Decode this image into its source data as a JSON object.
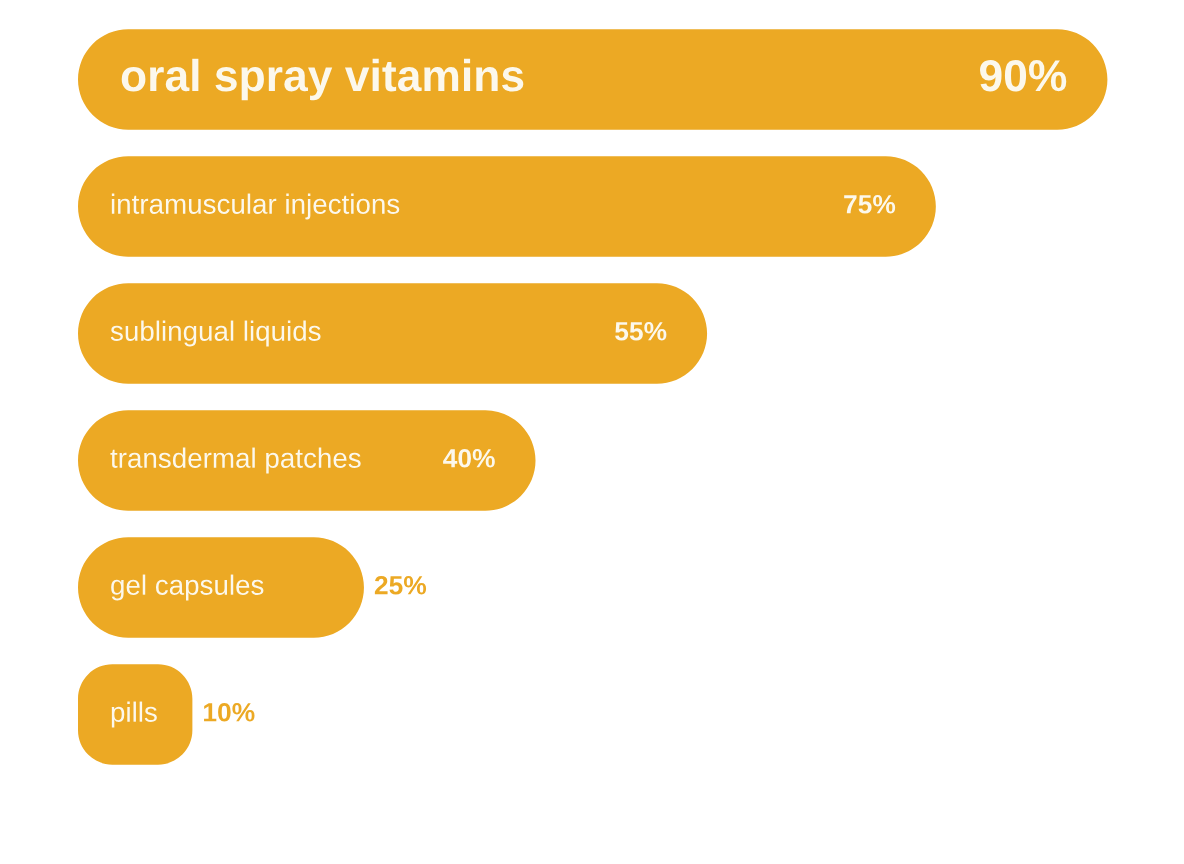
{
  "chart_data": {
    "type": "bar",
    "orientation": "horizontal",
    "categories": [
      "oral spray vitamins",
      "intramuscular injections",
      "sublingual liquids",
      "transdermal patches",
      "gel capsules",
      "pills"
    ],
    "values": [
      90,
      75,
      55,
      40,
      25,
      10
    ],
    "value_labels": [
      "90%",
      "75%",
      "55%",
      "40%",
      "25%",
      "10%"
    ],
    "color": "#eca924"
  }
}
